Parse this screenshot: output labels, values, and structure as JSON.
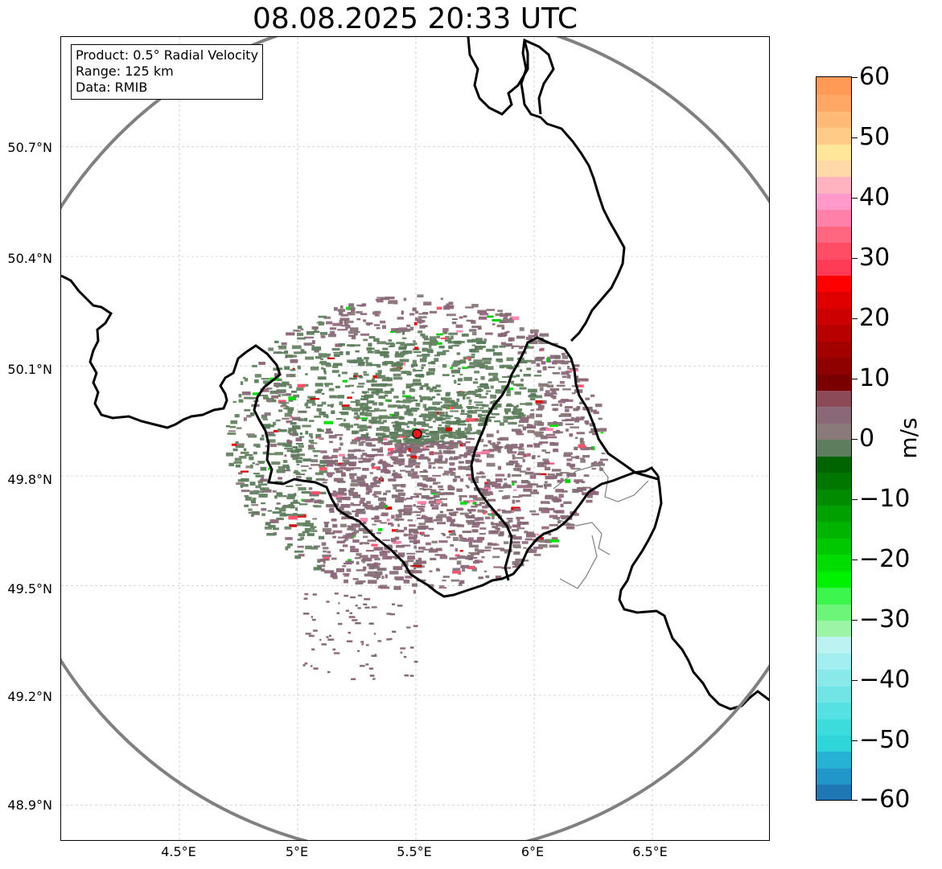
{
  "title": "08.08.2025 20:33 UTC",
  "info_box": {
    "line1": "Product: 0.5° Radial Velocity",
    "line2": "Range: 125 km",
    "line3": "Data: RMIB"
  },
  "map": {
    "lon_ticks": [
      "4.5°E",
      "5°E",
      "5.5°E",
      "6°E",
      "6.5°E"
    ],
    "lat_ticks": [
      "50.7°N",
      "50.4°N",
      "50.1°N",
      "49.8°N",
      "49.5°N",
      "49.2°N",
      "48.9°N"
    ],
    "lon_range": [
      4.0,
      7.0
    ],
    "lat_range": [
      48.8,
      51.0
    ],
    "radar_site": {
      "lon": 5.505,
      "lat": 49.915
    },
    "range_km": 125,
    "colors": {
      "range_ring": "#808080",
      "borders": "#000000",
      "admin_lines": "#7f7f7f",
      "grid": "#b0b0b0",
      "radar_marker": "#e8191c"
    }
  },
  "colorbar": {
    "label": "m/s",
    "min": -60,
    "max": 60,
    "ticks": [
      "60",
      "50",
      "40",
      "30",
      "20",
      "10",
      "0",
      "−10",
      "−20",
      "−30",
      "−40",
      "−50",
      "−60"
    ],
    "colors": [
      "#1f78b4",
      "#2196c8",
      "#26b2d2",
      "#2ed6d9",
      "#3cdcdc",
      "#55e1e1",
      "#6fe5e5",
      "#89e9e9",
      "#a3eeee",
      "#bdf2f2",
      "#9cf5a6",
      "#6df57a",
      "#3cf54d",
      "#00f200",
      "#00dc00",
      "#00c800",
      "#00b400",
      "#00a000",
      "#008c00",
      "#007800",
      "#006400",
      "#5e7d5e",
      "#8a7a7a",
      "#8a6878",
      "#8b4a55",
      "#7a0000",
      "#8f0000",
      "#a30000",
      "#b80000",
      "#cc0000",
      "#e00000",
      "#ff0000",
      "#ff3b55",
      "#ff4d66",
      "#ff6680",
      "#ff80a8",
      "#ff99cc",
      "#ffb3c0",
      "#ffd9a6",
      "#ffe699",
      "#ffcc88",
      "#ffbb77",
      "#ffa866",
      "#ff9955"
    ]
  }
}
